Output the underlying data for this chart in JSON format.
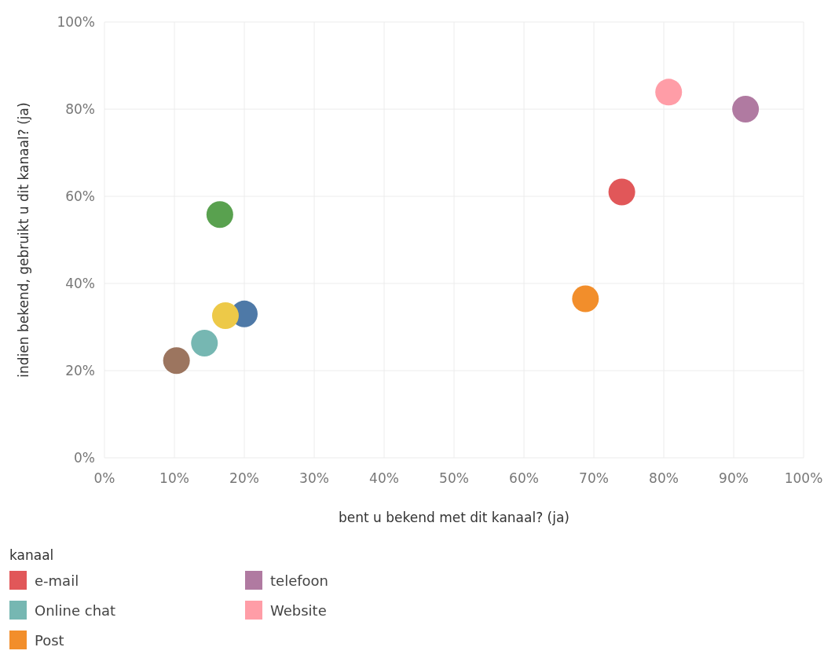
{
  "chart_data": {
    "type": "scatter",
    "xlabel": "bent u bekend met dit kanaal? (ja)",
    "ylabel": "indien bekend, gebruikt u dit kanaal? (ja)",
    "legend_title": "kanaal",
    "xlim": [
      0,
      100
    ],
    "ylim": [
      0,
      100
    ],
    "xticks": [
      {
        "value": 0,
        "label": "0%"
      },
      {
        "value": 10,
        "label": "10%"
      },
      {
        "value": 20,
        "label": "20%"
      },
      {
        "value": 30,
        "label": "30%"
      },
      {
        "value": 40,
        "label": "40%"
      },
      {
        "value": 50,
        "label": "50%"
      },
      {
        "value": 60,
        "label": "60%"
      },
      {
        "value": 70,
        "label": "70%"
      },
      {
        "value": 80,
        "label": "80%"
      },
      {
        "value": 90,
        "label": "90%"
      },
      {
        "value": 100,
        "label": "100%"
      }
    ],
    "yticks": [
      {
        "value": 0,
        "label": "0%"
      },
      {
        "value": 20,
        "label": "20%"
      },
      {
        "value": 40,
        "label": "40%"
      },
      {
        "value": 60,
        "label": "60%"
      },
      {
        "value": 80,
        "label": "80%"
      },
      {
        "value": 100,
        "label": "100%"
      }
    ],
    "grid": true,
    "legend": "bottom",
    "marker": "circle",
    "series": [
      {
        "name": "e-mail",
        "color": "#e15759",
        "x": [
          74
        ],
        "values": [
          61
        ]
      },
      {
        "color": "#4e79a7",
        "x": [
          20
        ],
        "values": [
          33
        ]
      },
      {
        "color": "#59a14f",
        "x": [
          16.5
        ],
        "values": [
          55.8
        ]
      },
      {
        "name": "Online chat",
        "color": "#76b7b2",
        "x": [
          14.3
        ],
        "values": [
          26.3
        ]
      },
      {
        "name": "Post",
        "color": "#f28e2b",
        "x": [
          68.8
        ],
        "values": [
          36.5
        ]
      },
      {
        "name": "telefoon",
        "color": "#b07aa1",
        "x": [
          91.7
        ],
        "values": [
          80
        ]
      },
      {
        "color": "#9c755f",
        "x": [
          10.3
        ],
        "values": [
          22.3
        ]
      },
      {
        "name": "Website",
        "color": "#ff9da7",
        "x": [
          80.7
        ],
        "values": [
          83.9
        ]
      },
      {
        "color": "#edc948",
        "x": [
          17.3
        ],
        "values": [
          32.6
        ]
      }
    ]
  }
}
